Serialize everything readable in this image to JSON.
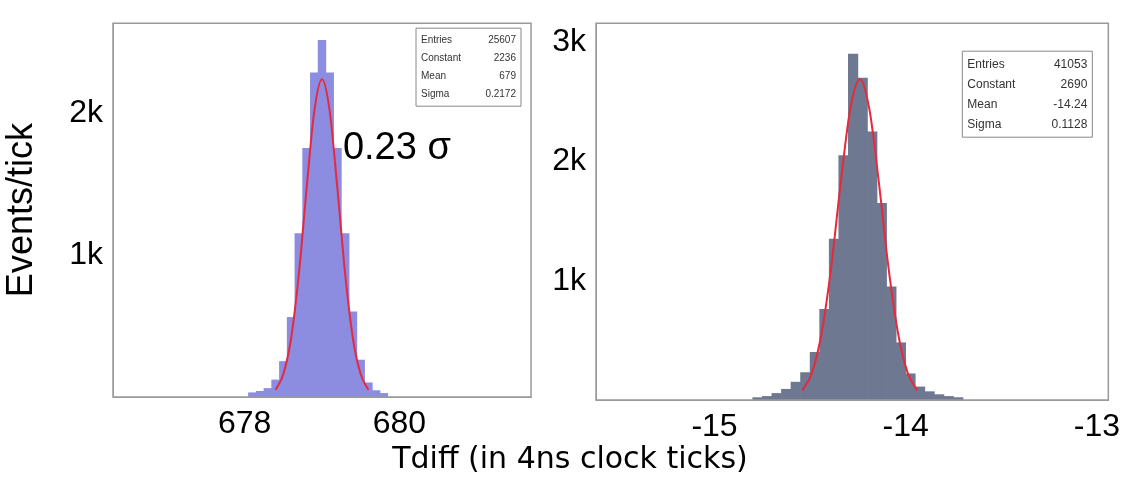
{
  "chart_data": [
    {
      "type": "histogram",
      "xlabel": "Tdiff (in 4ns clock ticks)",
      "ylabel": "Events/tick",
      "xlim": [
        676.3,
        681.7
      ],
      "ylim": [
        0,
        2630
      ],
      "xticks": [
        678,
        680
      ],
      "yticks": [
        {
          "value": 1000,
          "label": "1k"
        },
        {
          "value": 2000,
          "label": "2k"
        }
      ],
      "bins": [
        678.05,
        678.15,
        678.25,
        678.35,
        678.45,
        678.55,
        678.65,
        678.75,
        678.85,
        678.95,
        679.05,
        679.15,
        679.25,
        679.35,
        679.45,
        679.55,
        679.65,
        679.75,
        679.85
      ],
      "series": [
        {
          "color": "#8c8ce0",
          "values": [
            30,
            40,
            60,
            120,
            250,
            560,
            1150,
            1750,
            2280,
            2510,
            2280,
            1750,
            1150,
            600,
            260,
            100,
            45,
            25
          ]
        },
        {
          "type": "line",
          "color": "#e8283c",
          "x": [
            678.4,
            678.5,
            678.6,
            678.7,
            678.8,
            678.9,
            679.0,
            679.1,
            679.2,
            679.3,
            679.4,
            679.5,
            679.6
          ],
          "values": [
            50,
            160,
            410,
            860,
            1460,
            2010,
            2236,
            2010,
            1460,
            860,
            410,
            160,
            50
          ]
        }
      ],
      "annotations": [
        "Entries 25607",
        "Constant 2236",
        "Mean 679",
        "Sigma 0.2172",
        "0.23 σ"
      ]
    },
    {
      "type": "histogram",
      "xlim": [
        -15.62,
        -12.94
      ],
      "ylim": [
        0,
        3160
      ],
      "xticks": [
        -15,
        -14,
        -13
      ],
      "yticks": [
        {
          "value": 1000,
          "label": "1k"
        },
        {
          "value": 2000,
          "label": "2k"
        },
        {
          "value": 3000,
          "label": "3k"
        }
      ],
      "bins": [
        -14.8,
        -14.75,
        -14.7,
        -14.65,
        -14.6,
        -14.55,
        -14.5,
        -14.45,
        -14.4,
        -14.35,
        -14.3,
        -14.25,
        -14.2,
        -14.15,
        -14.1,
        -14.05,
        -14.0,
        -13.95,
        -13.9,
        -13.85,
        -13.8,
        -13.75,
        -13.7
      ],
      "series": [
        {
          "color": "#6e7890",
          "values": [
            20,
            30,
            55,
            90,
            150,
            230,
            400,
            760,
            1350,
            2050,
            2900,
            2700,
            2250,
            1650,
            950,
            480,
            220,
            110,
            70,
            45,
            30,
            20
          ]
        },
        {
          "type": "line",
          "color": "#e8283c",
          "x": [
            -14.54,
            -14.49,
            -14.44,
            -14.39,
            -14.34,
            -14.29,
            -14.24,
            -14.19,
            -14.14,
            -14.09,
            -14.04,
            -13.99,
            -13.94
          ],
          "values": [
            80,
            230,
            560,
            1110,
            1820,
            2440,
            2690,
            2440,
            1820,
            1110,
            560,
            230,
            80
          ]
        }
      ],
      "annotations": [
        "Entries 41053",
        "Constant 2690",
        "Mean -14.24",
        "Sigma 0.1128"
      ]
    }
  ]
}
